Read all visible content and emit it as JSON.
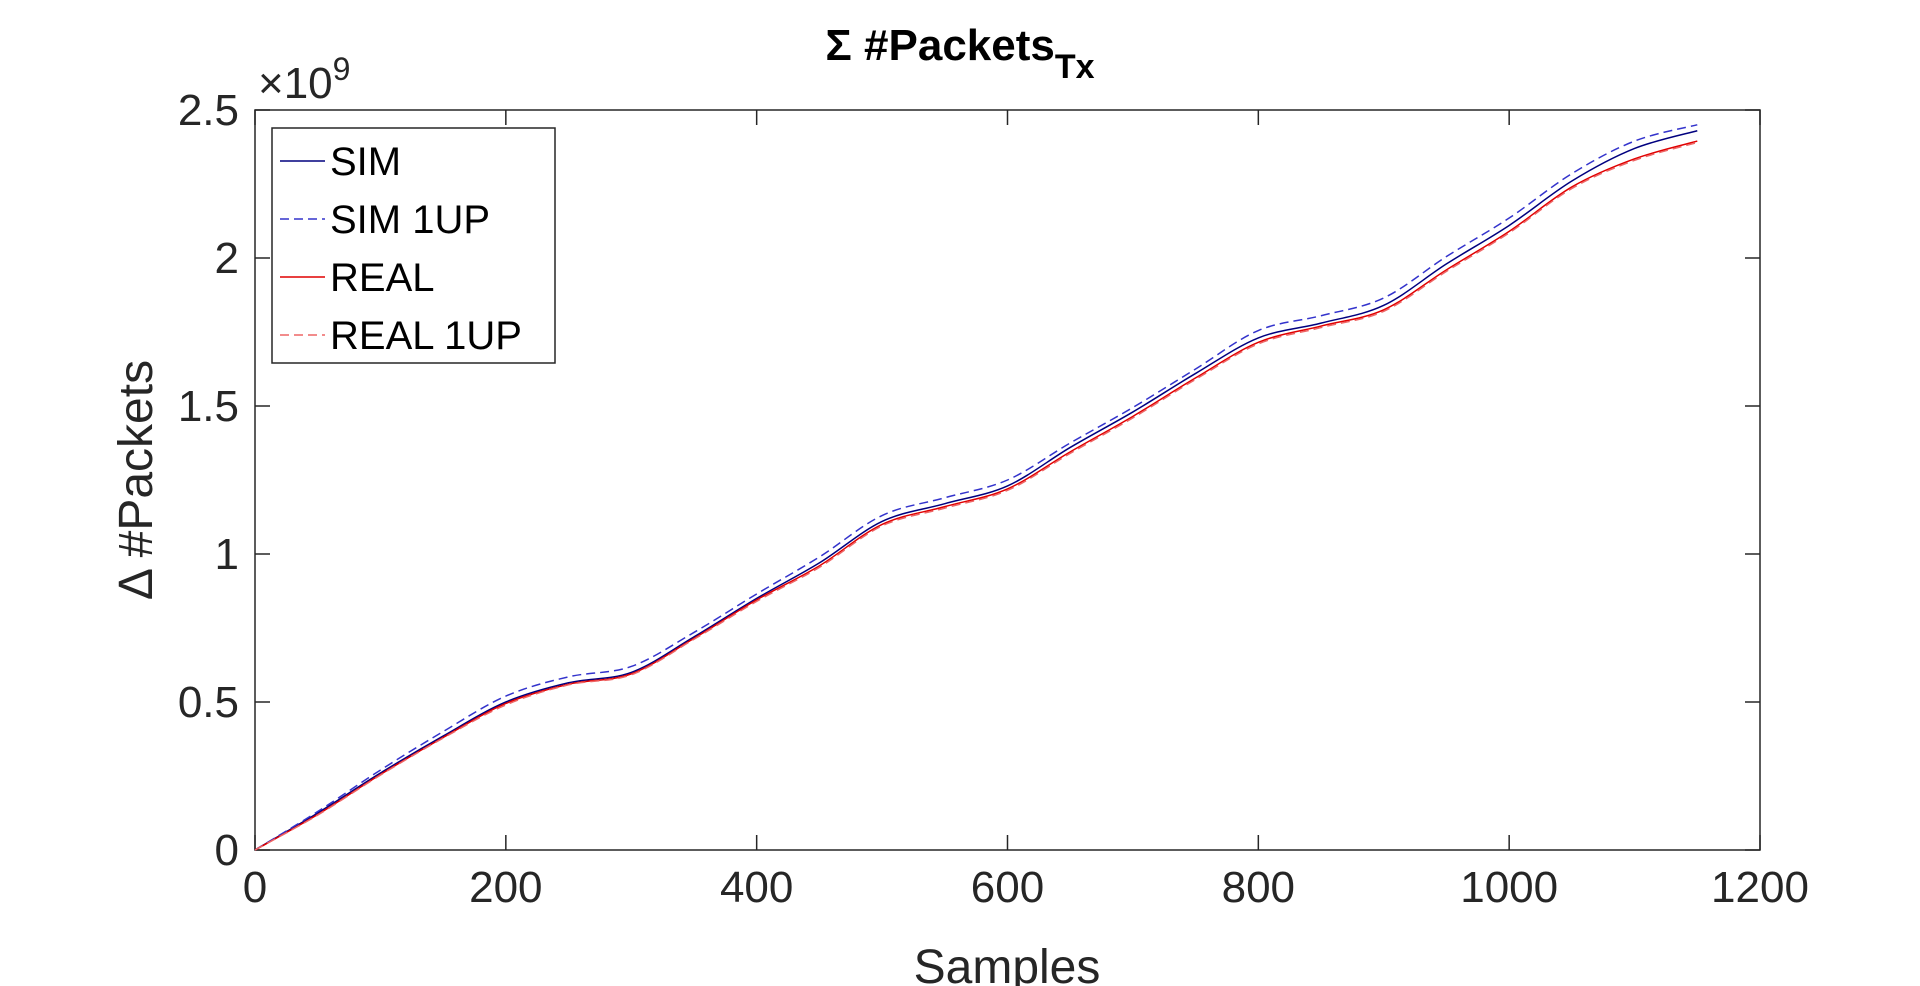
{
  "chart_data": {
    "type": "line",
    "title": "Σ #Packets",
    "title_subscript": "Tx",
    "xlabel": "Samples",
    "ylabel": "Δ #Packets",
    "y_exponent_base": "×10",
    "y_exponent_power": "9",
    "xlim": [
      0,
      1200
    ],
    "ylim": [
      0,
      2.5
    ],
    "xticks": [
      0,
      200,
      400,
      600,
      800,
      1000,
      1200
    ],
    "xtick_labels": [
      "0",
      "200",
      "400",
      "600",
      "800",
      "1000",
      "1200"
    ],
    "yticks": [
      0,
      0.5,
      1,
      1.5,
      2,
      2.5
    ],
    "ytick_labels": [
      "0",
      "0.5",
      "1",
      "1.5",
      "2",
      "2.5"
    ],
    "grid": false,
    "legend_position": "top-left",
    "x": [
      0,
      50,
      100,
      150,
      200,
      250,
      300,
      350,
      400,
      450,
      500,
      550,
      600,
      650,
      700,
      750,
      800,
      850,
      900,
      950,
      1000,
      1050,
      1100,
      1150
    ],
    "series": [
      {
        "name": "SIM",
        "color": "#00007f",
        "dash": "solid",
        "values": [
          0,
          0.125,
          0.26,
          0.385,
          0.5,
          0.565,
          0.6,
          0.72,
          0.85,
          0.97,
          1.11,
          1.17,
          1.23,
          1.36,
          1.48,
          1.61,
          1.73,
          1.78,
          1.84,
          1.98,
          2.11,
          2.26,
          2.37,
          2.43
        ]
      },
      {
        "name": "SIM 1UP",
        "color": "#3333cc",
        "dash": "dashed",
        "values": [
          0,
          0.13,
          0.27,
          0.4,
          0.52,
          0.585,
          0.62,
          0.735,
          0.865,
          0.99,
          1.13,
          1.19,
          1.25,
          1.375,
          1.495,
          1.625,
          1.755,
          1.805,
          1.865,
          2.005,
          2.135,
          2.285,
          2.395,
          2.45
        ]
      },
      {
        "name": "REAL",
        "color": "#e00000",
        "dash": "solid",
        "values": [
          0,
          0.12,
          0.255,
          0.38,
          0.495,
          0.56,
          0.595,
          0.715,
          0.845,
          0.96,
          1.1,
          1.16,
          1.22,
          1.345,
          1.465,
          1.595,
          1.715,
          1.77,
          1.825,
          1.96,
          2.09,
          2.24,
          2.335,
          2.395
        ]
      },
      {
        "name": "REAL 1UP",
        "color": "#ee6666",
        "dash": "dashed",
        "values": [
          0,
          0.118,
          0.253,
          0.378,
          0.49,
          0.558,
          0.592,
          0.712,
          0.84,
          0.955,
          1.095,
          1.155,
          1.215,
          1.34,
          1.46,
          1.59,
          1.71,
          1.765,
          1.82,
          1.955,
          2.085,
          2.235,
          2.33,
          2.39
        ]
      }
    ]
  }
}
